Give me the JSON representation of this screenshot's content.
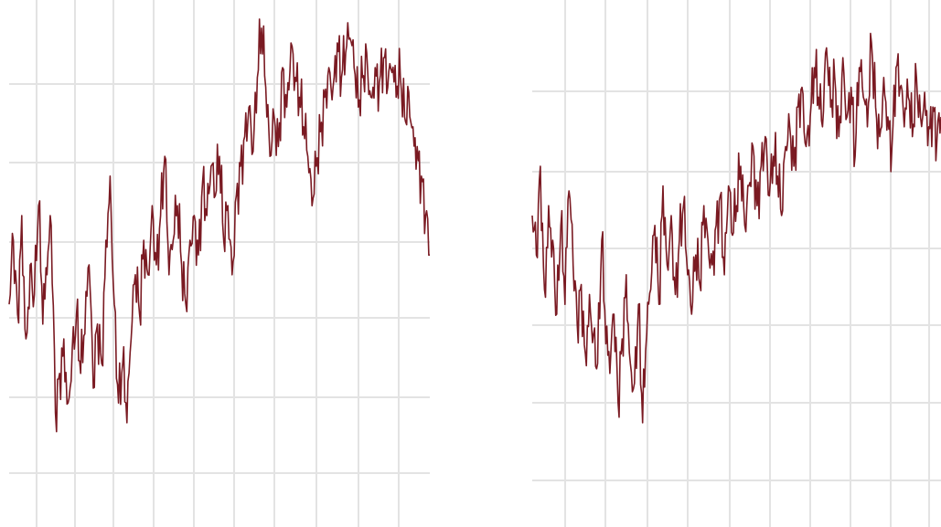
{
  "chart_data": [
    {
      "type": "line",
      "grid": true,
      "line_color": "#7a1a22",
      "x": [
        0,
        0.01,
        0.02,
        0.03,
        0.04,
        0.05,
        0.06,
        0.07,
        0.08,
        0.09,
        0.1,
        0.11,
        0.12,
        0.13,
        0.14,
        0.15,
        0.16,
        0.17,
        0.18,
        0.19,
        0.2,
        0.21,
        0.22,
        0.23,
        0.24,
        0.25,
        0.26,
        0.27,
        0.28,
        0.29,
        0.3,
        0.31,
        0.32,
        0.33,
        0.34,
        0.35,
        0.36,
        0.37,
        0.38,
        0.39,
        0.4,
        0.41,
        0.42,
        0.43,
        0.44,
        0.45,
        0.46,
        0.47,
        0.48,
        0.49,
        0.5,
        0.51,
        0.52,
        0.53,
        0.54,
        0.55,
        0.56,
        0.57,
        0.58,
        0.59,
        0.6,
        0.61,
        0.62,
        0.63,
        0.64,
        0.65,
        0.66,
        0.67,
        0.68,
        0.69,
        0.7,
        0.71,
        0.72,
        0.73,
        0.74,
        0.75,
        0.76,
        0.77,
        0.78,
        0.79,
        0.8,
        0.81,
        0.82,
        0.83,
        0.84,
        0.85,
        0.86,
        0.87,
        0.88,
        0.89,
        0.9,
        0.91,
        0.92,
        0.93,
        0.94,
        0.95,
        0.96,
        0.97,
        0.98,
        0.99,
        1.0
      ],
      "xlim": [
        0,
        1
      ],
      "ylim": [
        0,
        1
      ],
      "values": [
        0.42,
        0.55,
        0.4,
        0.6,
        0.35,
        0.5,
        0.44,
        0.62,
        0.38,
        0.48,
        0.58,
        0.2,
        0.28,
        0.35,
        0.22,
        0.33,
        0.4,
        0.28,
        0.36,
        0.5,
        0.25,
        0.38,
        0.3,
        0.55,
        0.68,
        0.42,
        0.22,
        0.3,
        0.18,
        0.35,
        0.48,
        0.4,
        0.55,
        0.48,
        0.62,
        0.5,
        0.6,
        0.72,
        0.48,
        0.55,
        0.62,
        0.5,
        0.42,
        0.55,
        0.6,
        0.52,
        0.67,
        0.6,
        0.7,
        0.64,
        0.72,
        0.55,
        0.62,
        0.48,
        0.64,
        0.7,
        0.76,
        0.82,
        0.73,
        0.88,
        0.98,
        0.86,
        0.72,
        0.8,
        0.74,
        0.9,
        0.82,
        0.95,
        0.88,
        0.84,
        0.78,
        0.72,
        0.62,
        0.7,
        0.77,
        0.84,
        0.9,
        0.86,
        0.95,
        0.88,
        0.93,
        0.96,
        0.9,
        0.82,
        0.88,
        0.93,
        0.84,
        0.9,
        0.87,
        0.92,
        0.86,
        0.89,
        0.84,
        0.88,
        0.8,
        0.85,
        0.78,
        0.74,
        0.68,
        0.6,
        0.52
      ]
    },
    {
      "type": "line",
      "grid": true,
      "line_color": "#7a1a22",
      "x": [
        0,
        0.01,
        0.02,
        0.03,
        0.04,
        0.05,
        0.06,
        0.07,
        0.08,
        0.09,
        0.1,
        0.11,
        0.12,
        0.13,
        0.14,
        0.15,
        0.16,
        0.17,
        0.18,
        0.19,
        0.2,
        0.21,
        0.22,
        0.23,
        0.24,
        0.25,
        0.26,
        0.27,
        0.28,
        0.29,
        0.3,
        0.31,
        0.32,
        0.33,
        0.34,
        0.35,
        0.36,
        0.37,
        0.38,
        0.39,
        0.4,
        0.41,
        0.42,
        0.43,
        0.44,
        0.45,
        0.46,
        0.47,
        0.48,
        0.49,
        0.5,
        0.51,
        0.52,
        0.53,
        0.54,
        0.55,
        0.56,
        0.57,
        0.58,
        0.59,
        0.6,
        0.61,
        0.62,
        0.63,
        0.64,
        0.65,
        0.66,
        0.67,
        0.68,
        0.69,
        0.7,
        0.71,
        0.72,
        0.73,
        0.74,
        0.75,
        0.76,
        0.77,
        0.78,
        0.79,
        0.8,
        0.81,
        0.82,
        0.83,
        0.84,
        0.85,
        0.86,
        0.87,
        0.88,
        0.89,
        0.9,
        0.91,
        0.92,
        0.93,
        0.94,
        0.95,
        0.96,
        0.97,
        0.98,
        0.99,
        1.0
      ],
      "xlim": [
        0,
        1
      ],
      "ylim": [
        0,
        1
      ],
      "values": [
        0.6,
        0.52,
        0.7,
        0.45,
        0.62,
        0.55,
        0.4,
        0.58,
        0.42,
        0.65,
        0.5,
        0.38,
        0.46,
        0.32,
        0.44,
        0.36,
        0.3,
        0.55,
        0.34,
        0.28,
        0.4,
        0.22,
        0.35,
        0.48,
        0.3,
        0.26,
        0.42,
        0.18,
        0.36,
        0.45,
        0.58,
        0.42,
        0.66,
        0.5,
        0.6,
        0.44,
        0.55,
        0.62,
        0.48,
        0.4,
        0.52,
        0.46,
        0.62,
        0.55,
        0.5,
        0.58,
        0.64,
        0.48,
        0.66,
        0.56,
        0.62,
        0.7,
        0.58,
        0.66,
        0.74,
        0.62,
        0.7,
        0.76,
        0.64,
        0.72,
        0.68,
        0.6,
        0.74,
        0.78,
        0.7,
        0.82,
        0.86,
        0.74,
        0.8,
        0.9,
        0.84,
        0.78,
        0.94,
        0.82,
        0.88,
        0.76,
        0.92,
        0.8,
        0.86,
        0.72,
        0.9,
        0.84,
        0.78,
        0.95,
        0.82,
        0.76,
        0.88,
        0.8,
        0.74,
        0.9,
        0.86,
        0.78,
        0.84,
        0.76,
        0.88,
        0.8,
        0.85,
        0.78,
        0.82,
        0.75,
        0.8
      ]
    }
  ]
}
